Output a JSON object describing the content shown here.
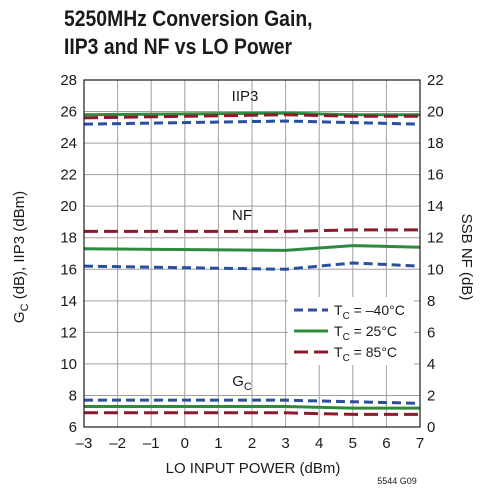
{
  "chart_data": {
    "type": "line",
    "title_lines": [
      "5250MHz Conversion Gain,",
      "IIP3 and NF vs LO Power"
    ],
    "xlabel": "LO INPUT POWER (dBm)",
    "ylabel_left_main": "G",
    "ylabel_left_sub": "C",
    "ylabel_left_rest": " (dB), IIP3 (dBm)",
    "ylabel_right": "SSB NF (dB)",
    "figure_code": "5544 G09",
    "x_ticks": [
      "–3",
      "–2",
      "–1",
      "0",
      "1",
      "2",
      "3",
      "4",
      "5",
      "6",
      "7"
    ],
    "y_left_ticks": [
      "6",
      "8",
      "10",
      "12",
      "14",
      "16",
      "18",
      "20",
      "22",
      "24",
      "26",
      "28"
    ],
    "y_right_ticks": [
      "0",
      "2",
      "4",
      "6",
      "8",
      "10",
      "12",
      "14",
      "16",
      "18",
      "20",
      "22"
    ],
    "xlim": [
      -3,
      7
    ],
    "ylim_left": [
      6,
      28
    ],
    "ylim_right": [
      0,
      22
    ],
    "grid": true,
    "legend_position": "right-middle",
    "legend": [
      {
        "key": "m40",
        "label_main": "T",
        "label_sub": "C",
        "label_rest": " = –40°C",
        "color": "#2b4f9c",
        "dash": "9,5"
      },
      {
        "key": "p25",
        "label_main": "T",
        "label_sub": "C",
        "label_rest": " = 25°C",
        "color": "#2e8b3e",
        "dash": ""
      },
      {
        "key": "p85",
        "label_main": "T",
        "label_sub": "C",
        "label_rest": " = 85°C",
        "color": "#8b1a2b",
        "dash": "14,6"
      }
    ],
    "annotations": {
      "iip3": "IIP3",
      "nf": "NF",
      "gc_main": "G",
      "gc_sub": "C"
    },
    "x": [
      -3,
      3,
      5,
      7
    ],
    "series": [
      {
        "group": "iip3",
        "temp": "m40",
        "axis": "left",
        "y": [
          25.2,
          25.4,
          25.3,
          25.2
        ]
      },
      {
        "group": "iip3",
        "temp": "p25",
        "axis": "left",
        "y": [
          25.8,
          25.9,
          25.8,
          25.8
        ]
      },
      {
        "group": "iip3",
        "temp": "p85",
        "axis": "left",
        "y": [
          25.6,
          25.8,
          25.7,
          25.7
        ]
      },
      {
        "group": "nf",
        "temp": "m40",
        "axis": "right",
        "y": [
          10.2,
          10.0,
          10.4,
          10.2
        ]
      },
      {
        "group": "nf",
        "temp": "p25",
        "axis": "right",
        "y": [
          11.3,
          11.2,
          11.5,
          11.4
        ]
      },
      {
        "group": "nf",
        "temp": "p85",
        "axis": "right",
        "y": [
          12.4,
          12.4,
          12.5,
          12.5
        ]
      },
      {
        "group": "gc",
        "temp": "m40",
        "axis": "left",
        "y": [
          7.7,
          7.7,
          7.6,
          7.5
        ]
      },
      {
        "group": "gc",
        "temp": "p25",
        "axis": "left",
        "y": [
          7.3,
          7.3,
          7.2,
          7.2
        ]
      },
      {
        "group": "gc",
        "temp": "p85",
        "axis": "left",
        "y": [
          6.9,
          6.9,
          6.8,
          6.8
        ]
      }
    ]
  }
}
